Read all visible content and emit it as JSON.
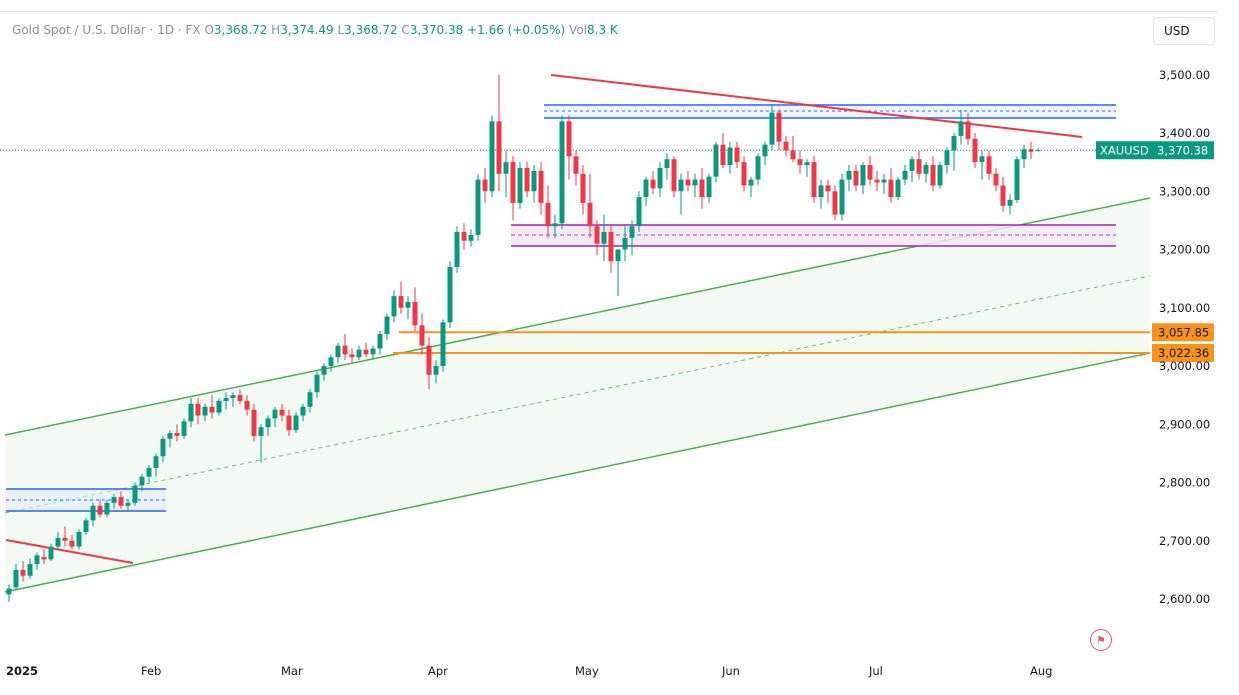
{
  "header": {
    "symbol_desc": "Gold Spot / U.S. Dollar · 1D · FX",
    "o_label": "O",
    "o_value": "3,368.72",
    "h_label": "H",
    "h_value": "3,374.49",
    "l_label": "L",
    "l_value": "3,368.72",
    "c_label": "C",
    "c_value": "3,370.38",
    "change": "+1.66 (+0.05%)",
    "vol_label": "Vol",
    "vol_value": "8.3 K"
  },
  "currency_button": "USD",
  "flag_icon": "us-flag-icon",
  "chart_data": {
    "type": "candlestick",
    "symbol": "XAUUSD",
    "last_price": 3370.38,
    "last_price_label": "3,370.38",
    "ylim": [
      2560,
      3560
    ],
    "yticks": [
      2600,
      2700,
      2800,
      2900,
      3000,
      3100,
      3200,
      3300,
      3400,
      3500
    ],
    "ytick_labels": [
      "2,600.00",
      "2,700.00",
      "2,800.00",
      "2,900.00",
      "3,000.00",
      "3,100.00",
      "3,200.00",
      "3,300.00",
      "3,400.00",
      "3,500.00"
    ],
    "xaxis_labels": [
      "2025",
      "Feb",
      "Mar",
      "Apr",
      "May",
      "Jun",
      "Jul",
      "Aug"
    ],
    "xaxis_label_bars": [
      0,
      20,
      40,
      61,
      82,
      103,
      124,
      147
    ],
    "price_levels": [
      {
        "value": 3057.85,
        "label": "3,057.85",
        "color": "#f7931a"
      },
      {
        "value": 3022.36,
        "label": "3,022.36",
        "color": "#f7931a"
      }
    ],
    "colors": {
      "up": "#089981",
      "down": "#f23645",
      "channel": "#4caf50",
      "resistance": "#f23645",
      "range_box": "#2962ff",
      "support_box": "#9c27b0",
      "level": "#f7931a"
    },
    "candles": [
      [
        2608,
        2625,
        2595,
        2618
      ],
      [
        2620,
        2660,
        2615,
        2650
      ],
      [
        2650,
        2665,
        2630,
        2640
      ],
      [
        2640,
        2670,
        2635,
        2660
      ],
      [
        2660,
        2680,
        2650,
        2675
      ],
      [
        2672,
        2685,
        2660,
        2668
      ],
      [
        2668,
        2695,
        2665,
        2690
      ],
      [
        2690,
        2715,
        2685,
        2705
      ],
      [
        2705,
        2725,
        2690,
        2700
      ],
      [
        2700,
        2710,
        2685,
        2690
      ],
      [
        2690,
        2720,
        2685,
        2715
      ],
      [
        2715,
        2740,
        2710,
        2735
      ],
      [
        2735,
        2765,
        2725,
        2760
      ],
      [
        2760,
        2770,
        2740,
        2745
      ],
      [
        2745,
        2770,
        2740,
        2765
      ],
      [
        2765,
        2780,
        2755,
        2775
      ],
      [
        2775,
        2785,
        2755,
        2760
      ],
      [
        2760,
        2770,
        2750,
        2765
      ],
      [
        2765,
        2800,
        2760,
        2795
      ],
      [
        2795,
        2815,
        2785,
        2810
      ],
      [
        2810,
        2830,
        2800,
        2825
      ],
      [
        2825,
        2850,
        2810,
        2845
      ],
      [
        2845,
        2880,
        2835,
        2875
      ],
      [
        2875,
        2890,
        2860,
        2885
      ],
      [
        2885,
        2900,
        2870,
        2880
      ],
      [
        2880,
        2910,
        2875,
        2905
      ],
      [
        2905,
        2945,
        2895,
        2935
      ],
      [
        2935,
        2945,
        2900,
        2915
      ],
      [
        2915,
        2935,
        2905,
        2930
      ],
      [
        2930,
        2950,
        2910,
        2920
      ],
      [
        2920,
        2945,
        2915,
        2940
      ],
      [
        2940,
        2955,
        2925,
        2945
      ],
      [
        2945,
        2955,
        2930,
        2950
      ],
      [
        2950,
        2960,
        2935,
        2940
      ],
      [
        2940,
        2950,
        2915,
        2925
      ],
      [
        2925,
        2935,
        2870,
        2880
      ],
      [
        2880,
        2900,
        2835,
        2895
      ],
      [
        2895,
        2915,
        2880,
        2910
      ],
      [
        2910,
        2930,
        2895,
        2925
      ],
      [
        2925,
        2935,
        2905,
        2915
      ],
      [
        2915,
        2925,
        2880,
        2890
      ],
      [
        2890,
        2920,
        2885,
        2915
      ],
      [
        2915,
        2935,
        2905,
        2930
      ],
      [
        2930,
        2960,
        2920,
        2955
      ],
      [
        2955,
        2990,
        2945,
        2985
      ],
      [
        2985,
        3005,
        2975,
        3000
      ],
      [
        3000,
        3020,
        2990,
        3015
      ],
      [
        3015,
        3040,
        3005,
        3035
      ],
      [
        3035,
        3055,
        3010,
        3020
      ],
      [
        3020,
        3030,
        3005,
        3015
      ],
      [
        3015,
        3035,
        3010,
        3028
      ],
      [
        3028,
        3040,
        3015,
        3020
      ],
      [
        3020,
        3035,
        3012,
        3030
      ],
      [
        3030,
        3060,
        3020,
        3055
      ],
      [
        3055,
        3090,
        3045,
        3085
      ],
      [
        3085,
        3130,
        3075,
        3120
      ],
      [
        3120,
        3145,
        3090,
        3100
      ],
      [
        3100,
        3120,
        3080,
        3110
      ],
      [
        3110,
        3135,
        3060,
        3070
      ],
      [
        3070,
        3090,
        3020,
        3035
      ],
      [
        3035,
        3050,
        2960,
        2985
      ],
      [
        2985,
        3010,
        2970,
        3000
      ],
      [
        3000,
        3080,
        2990,
        3075
      ],
      [
        3075,
        3180,
        3065,
        3170
      ],
      [
        3170,
        3240,
        3160,
        3230
      ],
      [
        3230,
        3245,
        3200,
        3215
      ],
      [
        3215,
        3235,
        3205,
        3225
      ],
      [
        3225,
        3330,
        3215,
        3320
      ],
      [
        3320,
        3340,
        3280,
        3300
      ],
      [
        3300,
        3430,
        3290,
        3420
      ],
      [
        3420,
        3500,
        3300,
        3330
      ],
      [
        3330,
        3370,
        3290,
        3350
      ],
      [
        3350,
        3360,
        3250,
        3280
      ],
      [
        3280,
        3350,
        3270,
        3340
      ],
      [
        3340,
        3350,
        3290,
        3300
      ],
      [
        3300,
        3345,
        3280,
        3335
      ],
      [
        3335,
        3350,
        3260,
        3280
      ],
      [
        3280,
        3310,
        3220,
        3240
      ],
      [
        3240,
        3260,
        3220,
        3245
      ],
      [
        3245,
        3430,
        3235,
        3420
      ],
      [
        3420,
        3430,
        3320,
        3360
      ],
      [
        3360,
        3370,
        3310,
        3330
      ],
      [
        3330,
        3345,
        3260,
        3280
      ],
      [
        3280,
        3330,
        3220,
        3240
      ],
      [
        3240,
        3250,
        3190,
        3210
      ],
      [
        3210,
        3260,
        3180,
        3230
      ],
      [
        3230,
        3240,
        3160,
        3180
      ],
      [
        3180,
        3200,
        3120,
        3200
      ],
      [
        3200,
        3240,
        3180,
        3220
      ],
      [
        3220,
        3250,
        3190,
        3240
      ],
      [
        3240,
        3300,
        3230,
        3290
      ],
      [
        3290,
        3325,
        3275,
        3320
      ],
      [
        3320,
        3335,
        3295,
        3305
      ],
      [
        3305,
        3350,
        3290,
        3340
      ],
      [
        3340,
        3365,
        3320,
        3355
      ],
      [
        3355,
        3360,
        3290,
        3300
      ],
      [
        3300,
        3330,
        3260,
        3320
      ],
      [
        3320,
        3335,
        3300,
        3310
      ],
      [
        3310,
        3330,
        3290,
        3320
      ],
      [
        3320,
        3340,
        3270,
        3290
      ],
      [
        3290,
        3330,
        3280,
        3325
      ],
      [
        3325,
        3385,
        3315,
        3380
      ],
      [
        3380,
        3400,
        3340,
        3345
      ],
      [
        3345,
        3385,
        3330,
        3375
      ],
      [
        3375,
        3385,
        3340,
        3350
      ],
      [
        3350,
        3360,
        3300,
        3310
      ],
      [
        3310,
        3325,
        3290,
        3320
      ],
      [
        3320,
        3365,
        3310,
        3360
      ],
      [
        3360,
        3385,
        3345,
        3380
      ],
      [
        3380,
        3450,
        3370,
        3435
      ],
      [
        3435,
        3440,
        3370,
        3385
      ],
      [
        3385,
        3395,
        3360,
        3370
      ],
      [
        3370,
        3395,
        3350,
        3355
      ],
      [
        3355,
        3370,
        3330,
        3345
      ],
      [
        3345,
        3355,
        3325,
        3350
      ],
      [
        3350,
        3360,
        3280,
        3290
      ],
      [
        3290,
        3320,
        3270,
        3310
      ],
      [
        3310,
        3320,
        3280,
        3300
      ],
      [
        3300,
        3310,
        3250,
        3260
      ],
      [
        3260,
        3330,
        3250,
        3320
      ],
      [
        3320,
        3345,
        3300,
        3335
      ],
      [
        3335,
        3345,
        3300,
        3310
      ],
      [
        3310,
        3350,
        3295,
        3345
      ],
      [
        3345,
        3360,
        3310,
        3320
      ],
      [
        3320,
        3335,
        3300,
        3315
      ],
      [
        3315,
        3330,
        3295,
        3320
      ],
      [
        3320,
        3340,
        3280,
        3290
      ],
      [
        3290,
        3325,
        3285,
        3320
      ],
      [
        3320,
        3345,
        3310,
        3335
      ],
      [
        3335,
        3360,
        3315,
        3355
      ],
      [
        3355,
        3370,
        3320,
        3330
      ],
      [
        3330,
        3350,
        3315,
        3345
      ],
      [
        3345,
        3360,
        3300,
        3310
      ],
      [
        3310,
        3350,
        3305,
        3345
      ],
      [
        3345,
        3375,
        3330,
        3370
      ],
      [
        3370,
        3400,
        3335,
        3395
      ],
      [
        3395,
        3440,
        3380,
        3420
      ],
      [
        3420,
        3435,
        3380,
        3390
      ],
      [
        3390,
        3400,
        3340,
        3350
      ],
      [
        3350,
        3370,
        3320,
        3360
      ],
      [
        3360,
        3370,
        3320,
        3330
      ],
      [
        3330,
        3340,
        3300,
        3310
      ],
      [
        3310,
        3325,
        3265,
        3275
      ],
      [
        3275,
        3295,
        3260,
        3285
      ],
      [
        3285,
        3360,
        3280,
        3355
      ],
      [
        3355,
        3380,
        3340,
        3372
      ],
      [
        3372,
        3385,
        3355,
        3368
      ],
      [
        3368.72,
        3374.49,
        3368.72,
        3370.38
      ]
    ]
  }
}
